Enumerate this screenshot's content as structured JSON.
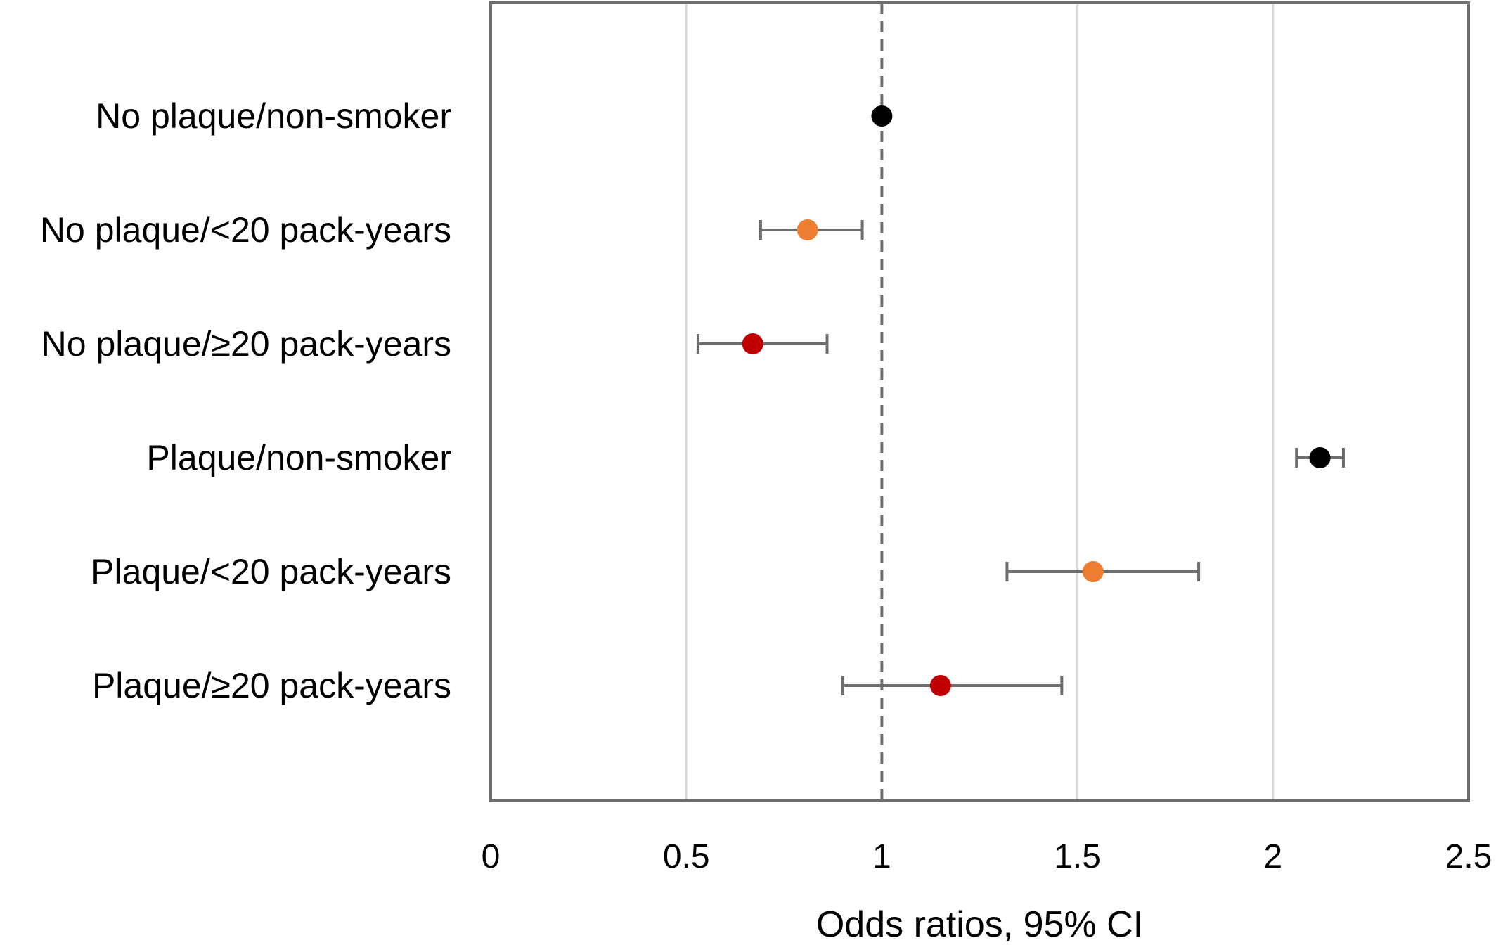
{
  "chart_data": {
    "type": "scatter",
    "subtype": "forest-plot",
    "title": "",
    "xlabel": "Odds ratios, 95% CI",
    "ylabel": "",
    "xlim": [
      0,
      2.5
    ],
    "x_ticks": [
      0,
      0.5,
      1,
      1.5,
      2,
      2.5
    ],
    "x_tick_labels": [
      "0",
      "0.5",
      "1",
      "1.5",
      "2",
      "2.5"
    ],
    "reference_line": 1,
    "grid": "vertical",
    "legend": "none",
    "colors": {
      "non_smoker": "#000000",
      "under_20": "#ED7D31",
      "over_20": "#C00000",
      "error_bar": "#6E6E6E",
      "grid": "#D9D9D9",
      "frame": "#6E6E6E",
      "reference_line": "#6E6E6E"
    },
    "categories": [
      "No plaque/non-smoker",
      "No plaque/<20 pack-years",
      "No plaque/≥20 pack-years",
      "Plaque/non-smoker",
      "Plaque/<20 pack-years",
      "Plaque/≥20 pack-years"
    ],
    "points": [
      {
        "category": "No plaque/non-smoker",
        "or": 1.0,
        "ci_low": null,
        "ci_high": null,
        "color": "#000000"
      },
      {
        "category": "No plaque/<20 pack-years",
        "or": 0.81,
        "ci_low": 0.69,
        "ci_high": 0.95,
        "color": "#ED7D31"
      },
      {
        "category": "No plaque/≥20 pack-years",
        "or": 0.67,
        "ci_low": 0.53,
        "ci_high": 0.86,
        "color": "#C00000"
      },
      {
        "category": "Plaque/non-smoker",
        "or": 2.12,
        "ci_low": 2.06,
        "ci_high": 2.18,
        "color": "#000000"
      },
      {
        "category": "Plaque/<20 pack-years",
        "or": 1.54,
        "ci_low": 1.32,
        "ci_high": 1.81,
        "color": "#ED7D31"
      },
      {
        "category": "Plaque/≥20 pack-years",
        "or": 1.15,
        "ci_low": 0.9,
        "ci_high": 1.46,
        "color": "#C00000"
      }
    ]
  }
}
